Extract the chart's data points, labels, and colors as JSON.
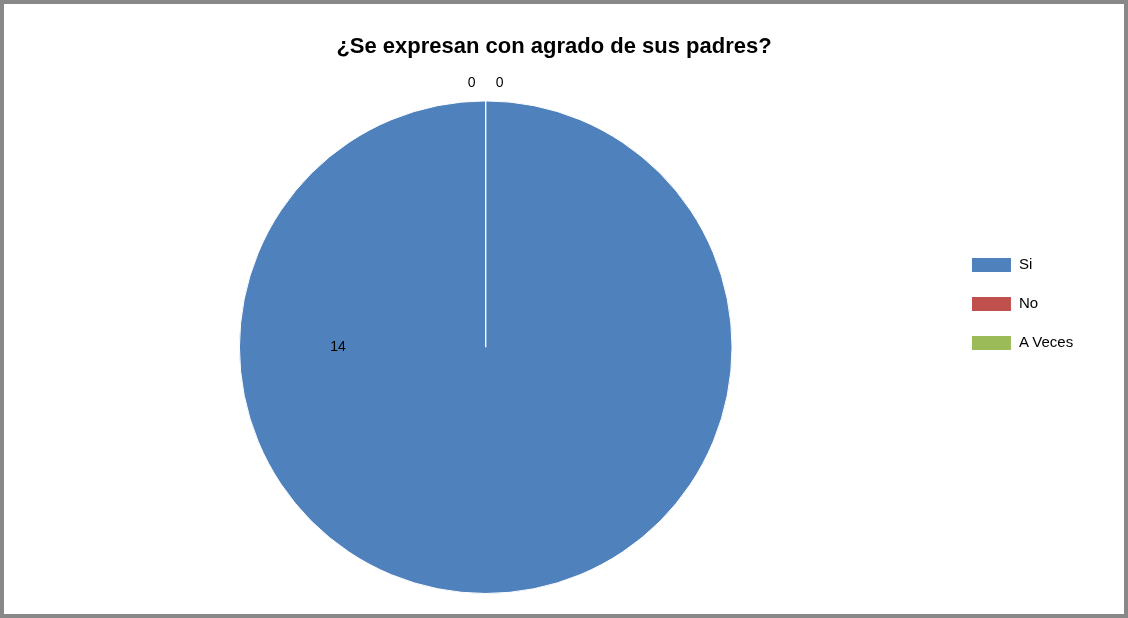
{
  "chart_data": {
    "type": "pie",
    "title": "¿Se expresan con agrado de sus padres?",
    "categories": [
      "Si",
      "No",
      "A Veces"
    ],
    "values": [
      14,
      0,
      0
    ],
    "colors": [
      "#4f81bd",
      "#c0504d",
      "#9bbb59"
    ],
    "value_labels": [
      "14",
      "0",
      "0"
    ],
    "legend": "right"
  }
}
